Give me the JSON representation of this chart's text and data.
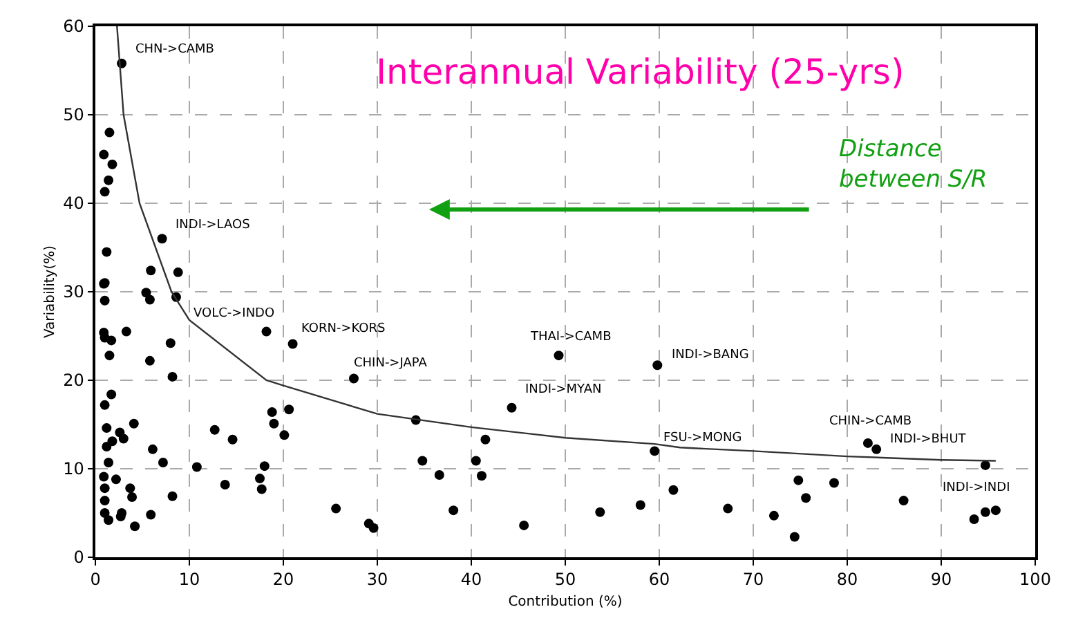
{
  "chart_data": {
    "type": "scatter",
    "title": "Interannual Variability (25-yrs)",
    "xlabel": "Contribution (%)",
    "ylabel": "Variability(%)",
    "xlim": [
      0,
      100
    ],
    "ylim": [
      0,
      60
    ],
    "xticks": [
      0,
      10,
      20,
      30,
      40,
      50,
      60,
      70,
      80,
      90,
      100
    ],
    "yticks": [
      0,
      10,
      20,
      30,
      40,
      50,
      60
    ],
    "grid": true,
    "marker": "circle",
    "series": [
      {
        "color": "#000000",
        "x": [
          2.8,
          1.5,
          0.9,
          1.8,
          1.4,
          1.0,
          7.1,
          1.2,
          5.9,
          8.8,
          1.0,
          8.6,
          5.4,
          5.8,
          0.9,
          1.0,
          0.9,
          1.0,
          1.7,
          3.3,
          1.5,
          8.0,
          5.8,
          8.2,
          1.7,
          1.0,
          1.2,
          4.1,
          2.6,
          3.0,
          1.8,
          1.2,
          6.1,
          1.4,
          7.2,
          0.9,
          2.2,
          3.7,
          3.9,
          1.0,
          1.0,
          1.0,
          2.8,
          1.4,
          2.7,
          5.9,
          4.2,
          8.2,
          10.8,
          18.2,
          21.0,
          12.7,
          14.6,
          13.8,
          18.0,
          17.5,
          17.7,
          18.8,
          19.0,
          20.1,
          20.6,
          27.5,
          34.1,
          49.3,
          59.8,
          44.3,
          41.5,
          34.8,
          40.5,
          36.6,
          41.1,
          59.5,
          25.6,
          38.1,
          29.1,
          29.6,
          45.6,
          53.7,
          58.0,
          61.5,
          67.3,
          72.2,
          74.4,
          74.8,
          75.6,
          78.6,
          86.0,
          82.2,
          83.1,
          94.7,
          93.5,
          94.7,
          95.8
        ],
        "values": [
          55.8,
          48.0,
          45.5,
          44.4,
          42.6,
          41.3,
          36.0,
          34.5,
          32.4,
          32.2,
          31.0,
          29.4,
          29.9,
          29.1,
          30.9,
          29.0,
          25.4,
          24.8,
          24.5,
          25.5,
          22.8,
          24.2,
          22.2,
          20.4,
          18.4,
          17.2,
          14.6,
          15.1,
          14.1,
          13.4,
          13.1,
          12.5,
          12.2,
          10.7,
          10.7,
          9.1,
          8.8,
          7.8,
          6.8,
          7.8,
          6.4,
          5.0,
          5.0,
          4.2,
          4.6,
          4.8,
          3.5,
          6.9,
          10.2,
          25.5,
          24.1,
          14.4,
          13.3,
          8.2,
          10.3,
          8.9,
          7.7,
          16.4,
          15.1,
          13.8,
          16.7,
          20.2,
          15.5,
          22.8,
          21.7,
          16.9,
          13.3,
          10.9,
          10.9,
          9.3,
          9.2,
          12.0,
          5.5,
          5.3,
          3.8,
          3.3,
          3.6,
          5.1,
          5.9,
          7.6,
          5.5,
          4.7,
          2.3,
          8.7,
          6.7,
          8.4,
          6.4,
          12.9,
          12.2,
          10.4,
          4.3,
          5.1,
          5.3
        ]
      },
      {
        "type": "line",
        "color": "#333333",
        "marker": "none",
        "line_style": "solid",
        "x": [
          2.3,
          3.0,
          4.7,
          8.1,
          10,
          18.2,
          20,
          25,
          30,
          40,
          50,
          59.5,
          62.2,
          70,
          80,
          90,
          95.8
        ],
        "values": [
          60,
          50,
          40,
          30,
          26.8,
          20,
          19.4,
          17.8,
          16.2,
          14.7,
          13.5,
          12.8,
          12.4,
          12.0,
          11.4,
          11.0,
          10.9
        ]
      }
    ],
    "annotations": [
      {
        "text": "CHN->CAMB",
        "x": 2.8,
        "y": 55.8
      },
      {
        "text": "INDI->LAOS",
        "x": 7.1,
        "y": 36.0
      },
      {
        "text": "VOLC->INDO",
        "x": 18.2,
        "y": 25.5
      },
      {
        "text": "KORN->KORS",
        "x": 21.0,
        "y": 24.1
      },
      {
        "text": "CHIN->JAPA",
        "x": 27.5,
        "y": 20.2
      },
      {
        "text": "THAI->CAMB",
        "x": 49.3,
        "y": 22.8
      },
      {
        "text": "INDI->BANG",
        "x": 59.8,
        "y": 21.7
      },
      {
        "text": "INDI->MYAN",
        "x": 44.3,
        "y": 16.9
      },
      {
        "text": "FSU->MONG",
        "x": 59.5,
        "y": 12.0
      },
      {
        "text": "CHIN->CAMB",
        "x": 82.2,
        "y": 12.9
      },
      {
        "text": "INDI->BHUT",
        "x": 83.1,
        "y": 12.2
      },
      {
        "text": "INDI->INDI",
        "x": 94.7,
        "y": 10.4
      },
      "Distance\nbetween S/R"
    ]
  }
}
